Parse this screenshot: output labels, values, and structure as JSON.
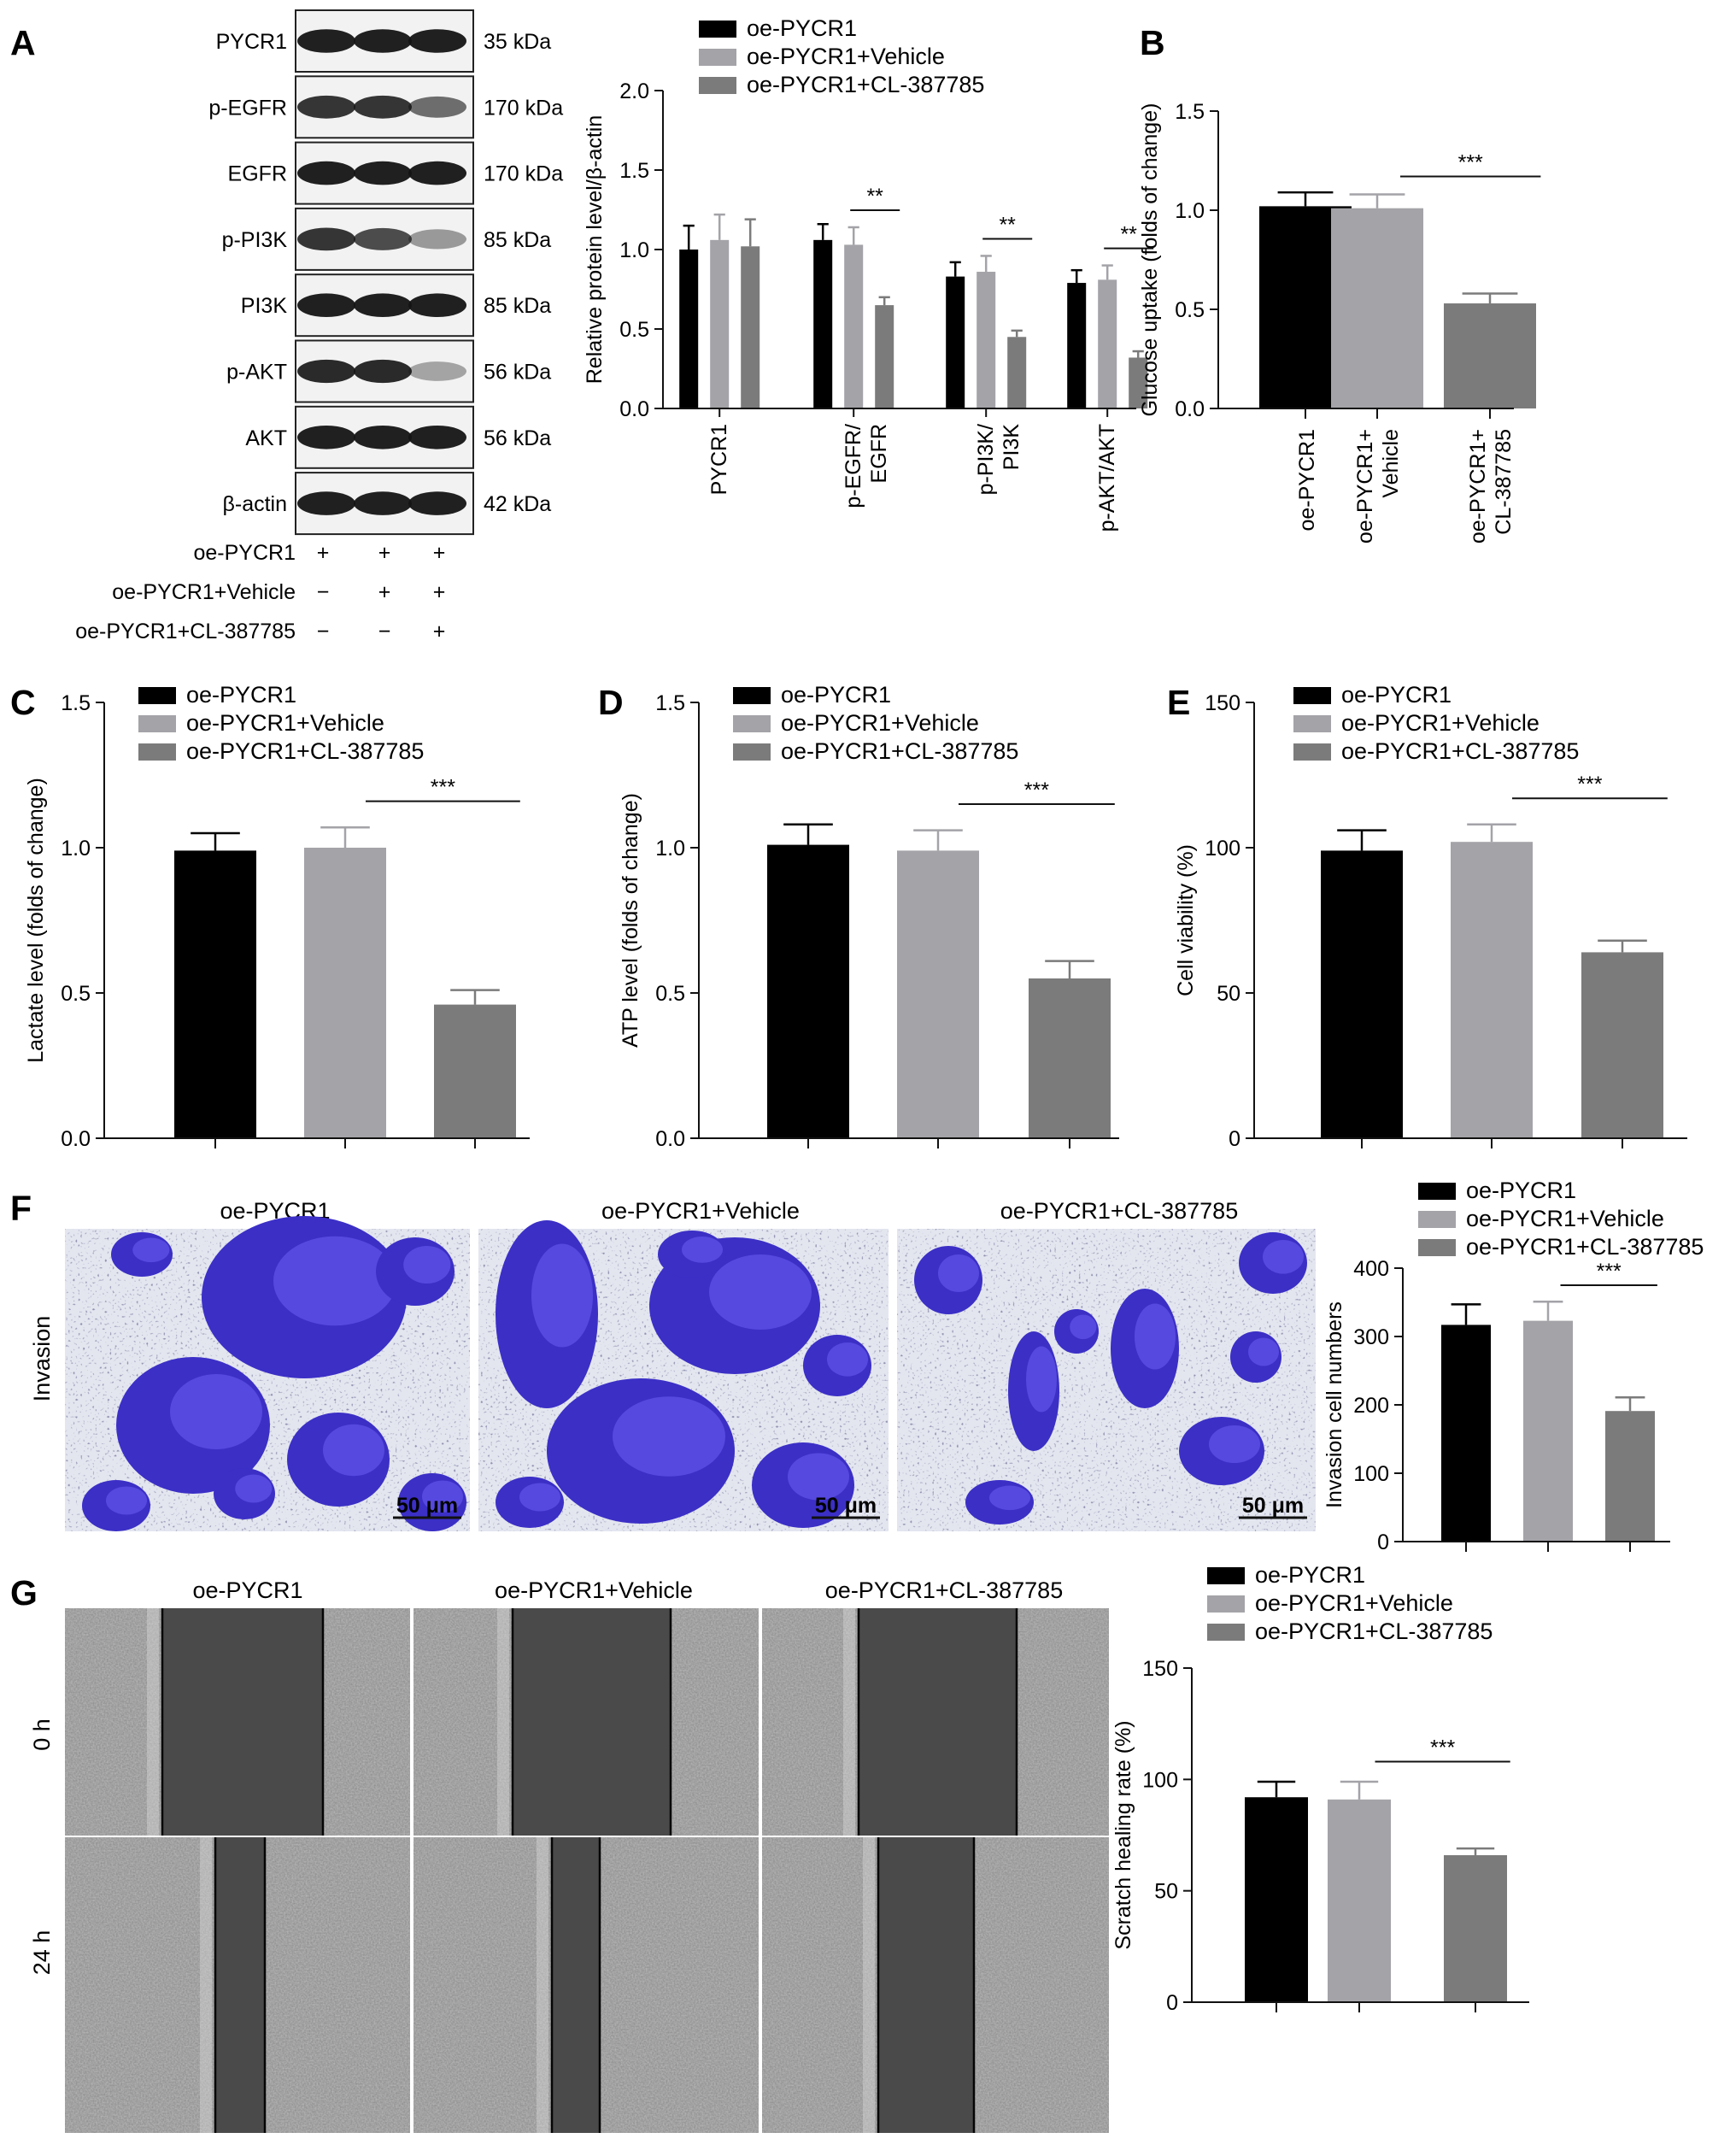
{
  "panel_letters": [
    "A",
    "B",
    "C",
    "D",
    "E",
    "F",
    "G"
  ],
  "legend": [
    "oe-PYCR1",
    "oe-PYCR1+Vehicle",
    "oe-PYCR1+CL-387785"
  ],
  "colors": {
    "s1": "#000000",
    "s2": "#a3a3a8",
    "s3": "#7b7b7b",
    "ctrl": "#0a0a0a"
  },
  "blot": {
    "rows": [
      {
        "label": "PYCR1",
        "mw": "35 kDa",
        "bands": [
          0.95,
          0.95,
          0.95
        ]
      },
      {
        "label": "p-EGFR",
        "mw": "170 kDa",
        "bands": [
          0.85,
          0.85,
          0.6
        ]
      },
      {
        "label": "EGFR",
        "mw": "170 kDa",
        "bands": [
          0.95,
          0.95,
          0.95
        ]
      },
      {
        "label": "p-PI3K",
        "mw": "85 kDa",
        "bands": [
          0.85,
          0.75,
          0.4
        ]
      },
      {
        "label": "PI3K",
        "mw": "85 kDa",
        "bands": [
          0.95,
          0.95,
          0.95
        ]
      },
      {
        "label": "p-AKT",
        "mw": "56 kDa",
        "bands": [
          0.9,
          0.9,
          0.35
        ]
      },
      {
        "label": "AKT",
        "mw": "56 kDa",
        "bands": [
          0.95,
          0.95,
          0.95
        ]
      },
      {
        "label": "β-actin",
        "mw": "42 kDa",
        "bands": [
          0.95,
          0.95,
          0.95
        ]
      }
    ],
    "conditions": [
      {
        "label": "oe-PYCR1",
        "signs": [
          "+",
          "+",
          "+"
        ]
      },
      {
        "label": "oe-PYCR1+Vehicle",
        "signs": [
          "−",
          "+",
          "+"
        ]
      },
      {
        "label": "oe-PYCR1+CL-387785",
        "signs": [
          "−",
          "−",
          "+"
        ]
      }
    ]
  },
  "images": {
    "F": {
      "row_label": "Invasion",
      "columns": [
        "oe-PYCR1",
        "oe-PYCR1+Vehicle",
        "oe-PYCR1+CL-387785"
      ],
      "scale_bar": "50 μm"
    },
    "G": {
      "row_labels": [
        "0 h",
        "24 h"
      ],
      "columns": [
        "oe-PYCR1",
        "oe-PYCR1+Vehicle",
        "oe-PYCR1+CL-387785"
      ]
    }
  },
  "chart_data": [
    {
      "id": "A-quant",
      "type": "bar",
      "ylabel": "Relative protein level/β-actin",
      "ylim": [
        0,
        2.0
      ],
      "yticks": [
        "0.0",
        "0.5",
        "1.0",
        "1.5",
        "2.0"
      ],
      "categories": [
        "PYCR1",
        "p-EGFR/\nEGFR",
        "p-PI3K/\nPI3K",
        "p-AKT/AKT"
      ],
      "series": [
        {
          "name": "oe-PYCR1",
          "values": [
            1.0,
            1.06,
            0.83,
            0.79
          ],
          "errors": [
            0.15,
            0.1,
            0.09,
            0.08
          ]
        },
        {
          "name": "oe-PYCR1+Vehicle",
          "values": [
            1.06,
            1.03,
            0.86,
            0.81
          ],
          "errors": [
            0.16,
            0.11,
            0.1,
            0.09
          ]
        },
        {
          "name": "oe-PYCR1+CL-387785",
          "values": [
            1.02,
            0.65,
            0.45,
            0.32
          ],
          "errors": [
            0.17,
            0.05,
            0.04,
            0.04
          ]
        }
      ],
      "sig": [
        null,
        "**",
        "**",
        "**"
      ],
      "legend_position": "top"
    },
    {
      "id": "B",
      "type": "bar",
      "ylabel": "Glucose uptake (folds of change)",
      "ylim": [
        0,
        1.5
      ],
      "yticks": [
        "0.0",
        "0.5",
        "1.0",
        "1.5"
      ],
      "categories": [
        "oe-PYCR1",
        "oe-PYCR1+\nVehicle",
        "oe-PYCR1+\nCL-387785"
      ],
      "values": [
        1.02,
        1.01,
        0.53
      ],
      "errors": [
        0.07,
        0.07,
        0.05
      ],
      "sig": "***"
    },
    {
      "id": "C",
      "type": "bar",
      "ylabel": "Lactate level (folds of change)",
      "ylim": [
        0,
        1.5
      ],
      "yticks": [
        "0.0",
        "0.5",
        "1.0",
        "1.5"
      ],
      "categories": [
        "oe-PYCR1",
        "oe-PYCR1+Vehicle",
        "oe-PYCR1+CL-387785"
      ],
      "values": [
        0.99,
        1.0,
        0.46
      ],
      "errors": [
        0.06,
        0.07,
        0.05
      ],
      "sig": "***",
      "legend_position": "top-left"
    },
    {
      "id": "D",
      "type": "bar",
      "ylabel": "ATP level (folds of change)",
      "ylim": [
        0,
        1.5
      ],
      "yticks": [
        "0.0",
        "0.5",
        "1.0",
        "1.5"
      ],
      "categories": [
        "oe-PYCR1",
        "oe-PYCR1+Vehicle",
        "oe-PYCR1+CL-387785"
      ],
      "values": [
        1.01,
        0.99,
        0.55
      ],
      "errors": [
        0.07,
        0.07,
        0.06
      ],
      "sig": "***",
      "legend_position": "top-left"
    },
    {
      "id": "E",
      "type": "bar",
      "ylabel": "Cell viability (%)",
      "ylim": [
        0,
        150
      ],
      "yticks": [
        "0",
        "50",
        "100",
        "150"
      ],
      "categories": [
        "oe-PYCR1",
        "oe-PYCR1+Vehicle",
        "oe-PYCR1+CL-387785"
      ],
      "values": [
        99,
        102,
        64
      ],
      "errors": [
        7,
        6,
        4
      ],
      "sig": "***",
      "legend_position": "top-left"
    },
    {
      "id": "F-quant",
      "type": "bar",
      "ylabel": "Invasion cell numbers",
      "ylim": [
        0,
        400
      ],
      "yticks": [
        "0",
        "100",
        "200",
        "300",
        "400"
      ],
      "categories": [
        "oe-PYCR1",
        "oe-PYCR1+Vehicle",
        "oe-PYCR1+CL-387785"
      ],
      "values": [
        317,
        323,
        191
      ],
      "errors": [
        30,
        28,
        20
      ],
      "sig": "***",
      "legend_position": "top"
    },
    {
      "id": "G-quant",
      "type": "bar",
      "ylabel": "Scratch healing rate (%)",
      "ylim": [
        0,
        150
      ],
      "yticks": [
        "0",
        "50",
        "100",
        "150"
      ],
      "categories": [
        "oe-PYCR1",
        "oe-PYCR1+Vehicle",
        "oe-PYCR1+CL-387785"
      ],
      "values": [
        92,
        91,
        66
      ],
      "errors": [
        7,
        8,
        3
      ],
      "sig": "***",
      "legend_position": "top"
    }
  ]
}
